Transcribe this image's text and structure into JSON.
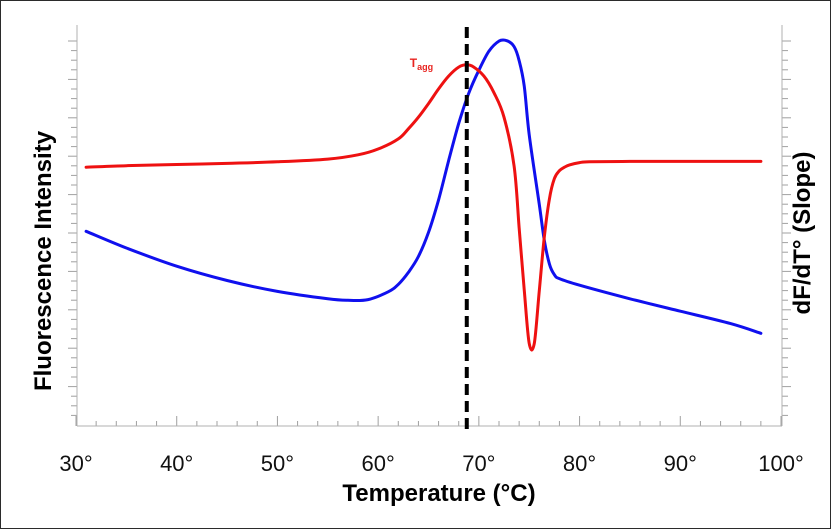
{
  "chart_data": {
    "type": "line",
    "xlabel": "Temperature (°C)",
    "ylabel_left": "Fluorescence Intensity",
    "ylabel_right": "dF/dT° (Slope)",
    "xlim": [
      30,
      100
    ],
    "ylim": [
      0,
      100
    ],
    "x_ticks": [
      30,
      40,
      50,
      60,
      70,
      80,
      90,
      100
    ],
    "x_tick_labels": [
      "30°",
      "40°",
      "50°",
      "60°",
      "70°",
      "80°",
      "90°",
      "100°"
    ],
    "vline": {
      "x": 68.8,
      "style": "dashed",
      "color": "#000000"
    },
    "annotation": {
      "text": "T",
      "subscript": "agg",
      "color": "#e8231f",
      "x": 68.8
    },
    "series": [
      {
        "name": "Fluorescence Intensity",
        "color": "#1010ee",
        "x": [
          31,
          35,
          40,
          45,
          50,
          55,
          57,
          59,
          61,
          62,
          63,
          64,
          65,
          66,
          67,
          68,
          69,
          70,
          71,
          72,
          72.8,
          73.5,
          74,
          74.5,
          75,
          76,
          76.5,
          77,
          77.5,
          78,
          80,
          85,
          90,
          95,
          98
        ],
        "y": [
          48.9,
          44.6,
          39.9,
          36.2,
          33.4,
          31.5,
          31.1,
          31.3,
          33.3,
          35.2,
          38.3,
          42.4,
          48.6,
          57.0,
          67.1,
          76.7,
          84.5,
          90.4,
          95.3,
          97.9,
          98.0,
          96.5,
          92.9,
          86.4,
          73.8,
          55.8,
          46.6,
          40.5,
          37.7,
          36.7,
          35.0,
          31.5,
          28.3,
          25.1,
          22.6
        ]
      },
      {
        "name": "dF/dT° (Slope)",
        "color": "#ee1111",
        "x": [
          31,
          35,
          40,
          45,
          50,
          55,
          58,
          60,
          62,
          63,
          64,
          65,
          66,
          67,
          68,
          68.8,
          69.5,
          70.5,
          71.5,
          72.5,
          73.5,
          74,
          74.5,
          75,
          75.5,
          76,
          76.5,
          77,
          77.5,
          78,
          78.5,
          79,
          80,
          81,
          85,
          90,
          98
        ],
        "y": [
          65.4,
          65.8,
          66.1,
          66.4,
          66.8,
          67.5,
          68.6,
          70.1,
          72.7,
          75.3,
          78.3,
          81.8,
          85.6,
          88.9,
          91.2,
          91.8,
          91.2,
          88.9,
          84.6,
          78.3,
          65.7,
          49.9,
          33.9,
          20.0,
          20.0,
          33.6,
          47.4,
          57.2,
          62.5,
          64.5,
          65.4,
          66.0,
          66.6,
          66.8,
          66.9,
          66.9,
          66.9
        ]
      }
    ]
  }
}
